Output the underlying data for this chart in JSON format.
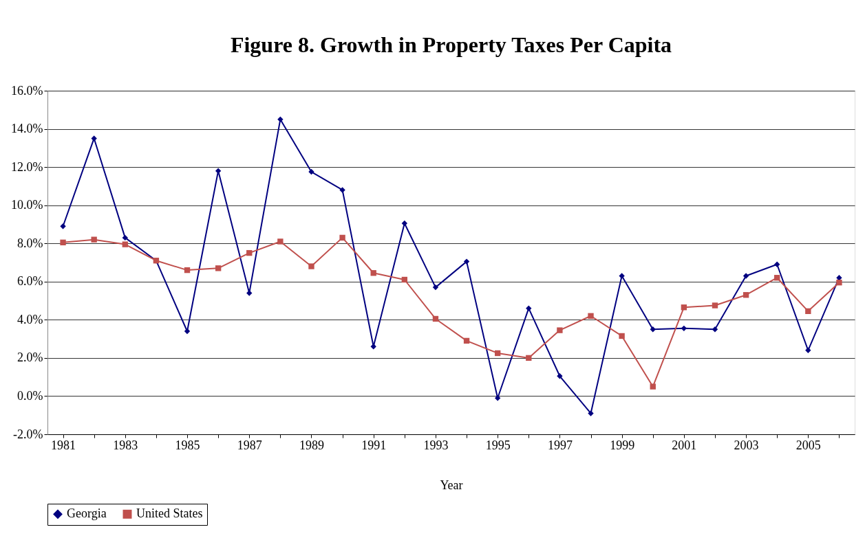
{
  "chart_data": {
    "type": "line",
    "title": "Figure 8. Growth  in Property Taxes Per Capita",
    "xlabel": "Year",
    "categories": [
      "1981",
      null,
      "1983",
      null,
      "1985",
      null,
      "1987",
      null,
      "1989",
      null,
      "1991",
      null,
      "1993",
      null,
      "1995",
      null,
      "1997",
      null,
      "1999",
      null,
      "2001",
      null,
      "2003",
      null,
      "2005",
      null
    ],
    "series": [
      {
        "name": "Georgia",
        "color": "#000080",
        "marker": "diamond",
        "values": [
          8.9,
          13.5,
          8.3,
          7.1,
          3.4,
          11.8,
          5.4,
          14.5,
          11.75,
          10.8,
          2.6,
          9.05,
          5.7,
          7.05,
          -0.1,
          4.6,
          1.05,
          -0.9,
          6.3,
          3.5,
          3.55,
          3.5,
          6.3,
          6.9,
          2.4,
          6.2
        ]
      },
      {
        "name": "United States",
        "color": "#c0504d",
        "marker": "square",
        "values": [
          8.05,
          8.2,
          7.95,
          7.1,
          6.6,
          6.7,
          7.5,
          8.1,
          6.8,
          8.3,
          6.45,
          6.1,
          4.05,
          2.9,
          2.25,
          2.0,
          3.45,
          4.2,
          3.15,
          0.5,
          4.65,
          4.75,
          5.3,
          6.2,
          4.45,
          5.95
        ]
      }
    ],
    "ylim": [
      -2,
      16
    ],
    "yticks": [
      {
        "value": -2,
        "label": "-2.0%"
      },
      {
        "value": 0,
        "label": "0.0%"
      },
      {
        "value": 2,
        "label": "2.0%"
      },
      {
        "value": 4,
        "label": "4.0%"
      },
      {
        "value": 6,
        "label": "6.0%"
      },
      {
        "value": 8,
        "label": "8.0%"
      },
      {
        "value": 10,
        "label": "10.0%"
      },
      {
        "value": 12,
        "label": "12.0%"
      },
      {
        "value": 14,
        "label": "14.0%"
      },
      {
        "value": 16,
        "label": "16.0%"
      }
    ],
    "grid": "y",
    "legend": "bottom",
    "line_style": "solid"
  }
}
